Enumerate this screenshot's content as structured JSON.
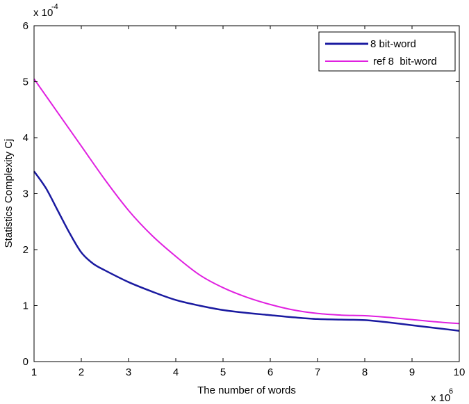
{
  "chart_data": {
    "type": "line",
    "xlabel": "The number of words",
    "ylabel": "Statistics Complexity Cj",
    "x_exponent_label": "x 10",
    "x_exponent_power": "6",
    "y_exponent_label": "x 10",
    "y_exponent_power": "-4",
    "xlim": [
      1,
      10
    ],
    "ylim": [
      0,
      6
    ],
    "xticks": [
      "1",
      "2",
      "3",
      "4",
      "5",
      "6",
      "7",
      "8",
      "9",
      "10"
    ],
    "yticks": [
      "0",
      "1",
      "2",
      "3",
      "4",
      "5",
      "6"
    ],
    "grid": false,
    "legend_position": "top-right",
    "series": [
      {
        "name": "8 bit-word",
        "color": "#1a1aa0",
        "x": [
          1,
          1.25,
          1.5,
          1.75,
          2,
          2.25,
          2.5,
          3,
          3.5,
          4,
          4.5,
          5,
          5.5,
          6,
          6.5,
          7,
          7.5,
          8,
          8.5,
          9,
          9.5,
          10
        ],
        "y": [
          3.4,
          3.1,
          2.7,
          2.3,
          1.95,
          1.75,
          1.63,
          1.42,
          1.25,
          1.1,
          1.0,
          0.92,
          0.87,
          0.83,
          0.79,
          0.76,
          0.75,
          0.74,
          0.7,
          0.65,
          0.6,
          0.55
        ]
      },
      {
        "name": "ref 8  bit-word",
        "color": "#e020e0",
        "x": [
          1,
          1.5,
          2,
          2.5,
          3,
          3.5,
          4,
          4.5,
          5,
          5.5,
          6,
          6.5,
          7,
          7.5,
          8,
          8.5,
          9,
          9.5,
          10
        ],
        "y": [
          5.05,
          4.45,
          3.85,
          3.25,
          2.7,
          2.25,
          1.88,
          1.55,
          1.32,
          1.15,
          1.02,
          0.92,
          0.86,
          0.83,
          0.82,
          0.79,
          0.75,
          0.71,
          0.68
        ]
      }
    ]
  }
}
